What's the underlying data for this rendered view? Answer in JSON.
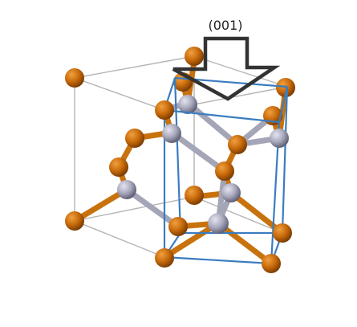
{
  "annotation": {
    "direction_label": "(001)",
    "arrow_color": "#333333"
  },
  "colors": {
    "orange_atom": "#c86a0a",
    "orange_atom_highlight": "#f0a040",
    "gray_atom": "#a8a8bc",
    "gray_atom_highlight": "#e4e4f0",
    "bond_orange": "#c8720e",
    "bond_gray": "#a5a5b8",
    "outer_cell_edge": "#b4b4b4",
    "inner_cell_edge": "#3a7cc0"
  },
  "icons": {
    "arrow": "down-arrow-icon",
    "atom_orange": "orange-atom",
    "atom_gray": "gray-atom"
  }
}
